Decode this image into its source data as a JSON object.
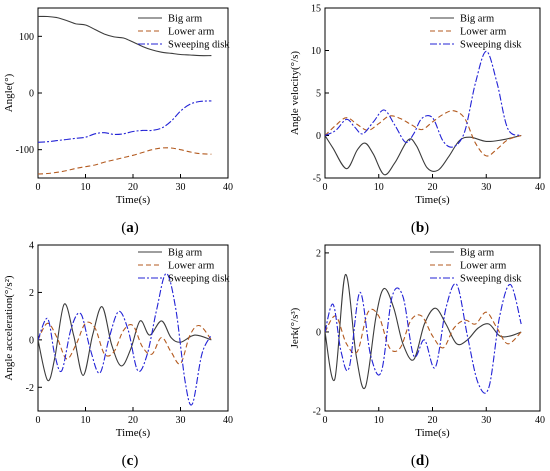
{
  "figure": {
    "panel_labels": [
      "(a)",
      "(b)",
      "(c)",
      "(d)"
    ]
  },
  "series_style": [
    {
      "name": "Big arm",
      "color": "#3c3c3c",
      "dash": "none"
    },
    {
      "name": "Lower arm",
      "color": "#b35a1f",
      "dash": "5,3"
    },
    {
      "name": "Sweeping disk",
      "color": "#2323d6",
      "dash": "7,2,2,2"
    }
  ],
  "chart_data": [
    {
      "type": "line",
      "panel": "(a)",
      "xlabel": "Time(s)",
      "ylabel": "Angle(°)",
      "xlim": [
        0,
        40
      ],
      "ylim": [
        -150,
        150
      ],
      "xticks": [
        0,
        10,
        20,
        30,
        40
      ],
      "yticks": [
        -100,
        0,
        100
      ],
      "grid": false,
      "legend": "top-right",
      "series": [
        {
          "name": "Big arm",
          "x": [
            0,
            2,
            4,
            6,
            8,
            10,
            12,
            14,
            16,
            18,
            20,
            22,
            24,
            26,
            28,
            30,
            32,
            34,
            36.5
          ],
          "values": [
            135,
            135,
            133,
            128,
            122,
            120,
            112,
            104,
            99,
            97,
            90,
            82,
            76,
            72,
            70,
            68,
            67,
            66,
            66
          ]
        },
        {
          "name": "Lower arm",
          "x": [
            0,
            2,
            4,
            6,
            8,
            10,
            12,
            14,
            16,
            18,
            20,
            22,
            24,
            26,
            28,
            30,
            32,
            34,
            36.5
          ],
          "values": [
            -143,
            -142,
            -140,
            -137,
            -133,
            -130,
            -127,
            -122,
            -118,
            -114,
            -110,
            -105,
            -100,
            -97,
            -97,
            -100,
            -104,
            -107,
            -108
          ]
        },
        {
          "name": "Sweeping disk",
          "x": [
            0,
            2,
            4,
            6,
            8,
            10,
            12,
            14,
            16,
            18,
            20,
            22,
            24,
            26,
            28,
            30,
            32,
            34,
            36.5
          ],
          "values": [
            -87,
            -86,
            -84,
            -82,
            -80,
            -78,
            -72,
            -70,
            -73,
            -72,
            -68,
            -66,
            -66,
            -62,
            -50,
            -32,
            -20,
            -15,
            -14
          ]
        }
      ]
    },
    {
      "type": "line",
      "panel": "(b)",
      "xlabel": "Time(s)",
      "ylabel": "Angle velocity(°/s)",
      "xlim": [
        0,
        40
      ],
      "ylim": [
        -5,
        15
      ],
      "xticks": [
        0,
        10,
        20,
        30,
        40
      ],
      "yticks": [
        -5,
        0,
        5,
        10,
        15
      ],
      "grid": false,
      "legend": "top-right",
      "series": [
        {
          "name": "Big arm",
          "x": [
            0,
            1.5,
            4,
            6,
            7.5,
            9,
            11,
            13,
            15.5,
            17,
            19,
            21,
            23,
            25,
            27,
            30,
            33,
            36.5
          ],
          "values": [
            0,
            -1.5,
            -3.9,
            -1.7,
            -0.9,
            -2.2,
            -4.6,
            -3.2,
            -0.5,
            -1.2,
            -3.8,
            -4.1,
            -2.5,
            -0.6,
            -0.2,
            -0.7,
            -0.5,
            0
          ]
        },
        {
          "name": "Lower arm",
          "x": [
            0,
            2,
            4,
            6,
            8,
            10,
            12,
            14,
            16,
            18,
            20,
            22,
            24,
            26,
            28,
            30,
            32,
            34,
            36.5
          ],
          "values": [
            0,
            1.2,
            2.1,
            1.3,
            0.6,
            1.4,
            2.3,
            2.0,
            1.3,
            0.7,
            1.6,
            2.5,
            2.9,
            2.0,
            -0.9,
            -2.4,
            -1.6,
            -0.5,
            0
          ]
        },
        {
          "name": "Sweeping disk",
          "x": [
            0,
            2,
            4,
            5.5,
            7,
            9,
            11,
            13,
            15,
            16.5,
            18,
            20,
            22,
            24,
            26,
            28,
            30,
            32,
            34,
            36.5
          ],
          "values": [
            0,
            0.6,
            1.9,
            1.0,
            0.2,
            1.6,
            3.0,
            1.2,
            -0.8,
            0.2,
            2.0,
            2.1,
            -0.7,
            -1.3,
            0.5,
            6.2,
            9.9,
            6.2,
            0.8,
            0
          ]
        }
      ]
    },
    {
      "type": "line",
      "panel": "(c)",
      "xlabel": "Time(s)",
      "ylabel": "Angle acceleration(°/s²)",
      "xlim": [
        0,
        40
      ],
      "ylim": [
        -3,
        4
      ],
      "xticks": [
        0,
        10,
        20,
        30,
        40
      ],
      "yticks": [
        -2,
        0,
        2,
        4
      ],
      "grid": false,
      "legend": "top-right",
      "series": [
        {
          "name": "Big arm",
          "x": [
            0,
            2,
            3.5,
            5.5,
            7.5,
            9.5,
            11.5,
            13.5,
            15.5,
            17.5,
            19.5,
            21.5,
            23.5,
            26,
            28,
            30,
            33,
            36.5
          ],
          "values": [
            0,
            -1.7,
            -0.8,
            1.5,
            0.2,
            -1.5,
            0.2,
            1.4,
            -0.2,
            -1.1,
            -0.4,
            0.8,
            0.2,
            0.8,
            0.1,
            -0.1,
            0.2,
            0
          ]
        },
        {
          "name": "Lower arm",
          "x": [
            0,
            2,
            4,
            6,
            8,
            10,
            12,
            14,
            16,
            18,
            20,
            22,
            24,
            26,
            28,
            30,
            32,
            34,
            36.5
          ],
          "values": [
            0,
            0.7,
            0.1,
            -0.8,
            -0.2,
            0.7,
            0.5,
            -0.6,
            -0.5,
            0.4,
            0.6,
            -0.3,
            -0.6,
            0.1,
            -0.5,
            -1.0,
            0.2,
            0.6,
            0
          ]
        },
        {
          "name": "Sweeping disk",
          "x": [
            0,
            2,
            3.5,
            5,
            7,
            9,
            11,
            13,
            15,
            17,
            19,
            21,
            23,
            25,
            27,
            29,
            31,
            32.5,
            34.5,
            36.5
          ],
          "values": [
            0,
            0.9,
            -0.6,
            -1.3,
            0.5,
            1.1,
            -0.4,
            -1.4,
            0.1,
            1.2,
            0.4,
            -1.3,
            -0.6,
            1.3,
            2.8,
            1.3,
            -1.8,
            -2.7,
            -0.6,
            0.2
          ]
        }
      ]
    },
    {
      "type": "line",
      "panel": "(d)",
      "xlabel": "Time(s)",
      "ylabel": "Jerk(°/s³)",
      "xlim": [
        0,
        40
      ],
      "ylim": [
        -2,
        2.2
      ],
      "xticks": [
        0,
        10,
        20,
        30,
        40
      ],
      "yticks": [
        -2,
        0,
        2
      ],
      "grid": false,
      "legend": "top-right",
      "series": [
        {
          "name": "Big arm",
          "x": [
            0,
            1.8,
            3.8,
            5.8,
            7.5,
            9.5,
            11,
            12.8,
            14.5,
            16.5,
            18.5,
            20.5,
            22.5,
            24.5,
            26.5,
            28.5,
            30.5,
            32.5,
            34.5,
            36.5
          ],
          "values": [
            0,
            -1.2,
            1.45,
            -0.6,
            -1.4,
            0.4,
            1.1,
            0.6,
            -0.3,
            -0.7,
            0.2,
            0.6,
            0.2,
            -0.3,
            -0.2,
            0.1,
            0.2,
            -0.1,
            -0.1,
            0
          ]
        },
        {
          "name": "Lower arm",
          "x": [
            0,
            2,
            4,
            6,
            8,
            10,
            12,
            14,
            16,
            18,
            20,
            22,
            24,
            26,
            28,
            30,
            32,
            34,
            36.5
          ],
          "values": [
            0,
            0.4,
            -0.3,
            -0.5,
            0.5,
            0.4,
            -0.4,
            -0.4,
            0.3,
            0.4,
            -0.1,
            -0.4,
            0.1,
            0.3,
            0.2,
            0.5,
            0.1,
            -0.3,
            0
          ]
        },
        {
          "name": "Sweeping disk",
          "x": [
            0,
            1.5,
            3,
            4.5,
            6.5,
            8.5,
            10.5,
            12.5,
            14.5,
            16.5,
            18.5,
            20.5,
            22.5,
            24.5,
            26.5,
            28.5,
            30.5,
            32.5,
            34.5,
            36.5
          ],
          "values": [
            0,
            0.7,
            -0.5,
            -0.9,
            1.0,
            -0.6,
            -1.0,
            0.9,
            0.9,
            -0.6,
            -0.2,
            -0.9,
            0.6,
            1.2,
            -0.1,
            -1.3,
            -1.4,
            0.4,
            1.2,
            0.2
          ]
        }
      ]
    }
  ]
}
